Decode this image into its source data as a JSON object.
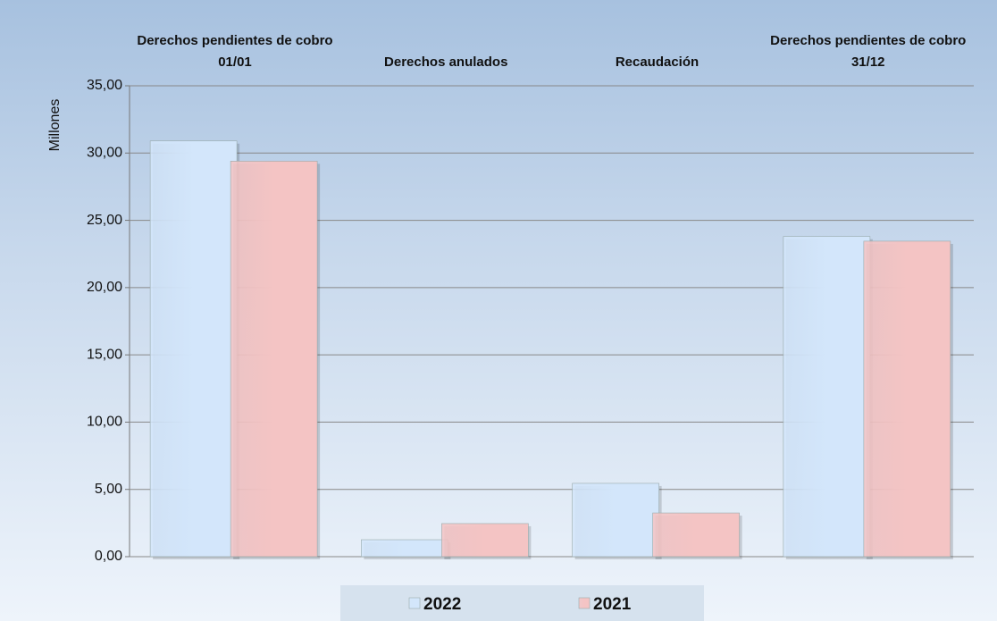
{
  "chart_data": {
    "type": "bar",
    "y_axis_label": "Millones",
    "categories": [
      "Derechos pendientes de cobro 01/01",
      "Derechos anulados",
      "Recaudación",
      "Derechos pendientes de cobro 31/12"
    ],
    "series": [
      {
        "name": "2022",
        "color": "#d3e6fb",
        "values": [
          30.9,
          1.26,
          5.45,
          23.8
        ]
      },
      {
        "name": "2021",
        "color": "#f4c4c4",
        "values": [
          29.4,
          2.46,
          3.25,
          23.45
        ]
      }
    ],
    "ylim": [
      0,
      35
    ],
    "yticks": [
      {
        "value": 0,
        "label": "0,00"
      },
      {
        "value": 5,
        "label": "5,00"
      },
      {
        "value": 10,
        "label": "10,00"
      },
      {
        "value": 15,
        "label": "15,00"
      },
      {
        "value": 20,
        "label": "20,00"
      },
      {
        "value": 25,
        "label": "25,00"
      },
      {
        "value": 30,
        "label": "30,00"
      },
      {
        "value": 35,
        "label": "35,00"
      }
    ],
    "grid": true,
    "legend": "bottom"
  }
}
